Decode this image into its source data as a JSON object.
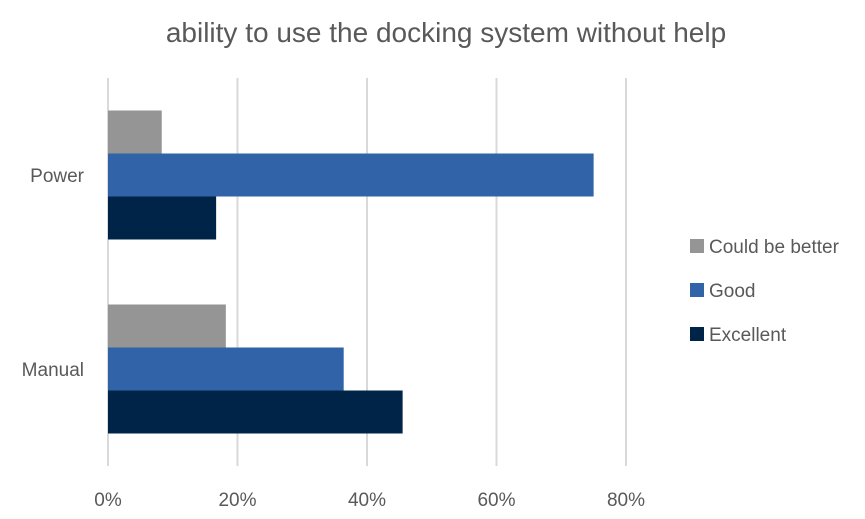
{
  "chart_data": {
    "type": "bar",
    "orientation": "horizontal",
    "title": "ability to use the docking system without help",
    "xlabel": "",
    "ylabel": "",
    "categories": [
      "Power",
      "Manual"
    ],
    "series": [
      {
        "name": "Could be better",
        "values": [
          8.3,
          18.2
        ],
        "color": "#959595"
      },
      {
        "name": "Good",
        "values": [
          75.0,
          36.4
        ],
        "color": "#3063A7"
      },
      {
        "name": "Excellent",
        "values": [
          16.7,
          45.5
        ],
        "color": "#002448"
      }
    ],
    "xlim": [
      0,
      80
    ],
    "x_ticks": [
      "0%",
      "20%",
      "40%",
      "60%",
      "80%"
    ],
    "gridlines": true,
    "legend_position": "right"
  }
}
